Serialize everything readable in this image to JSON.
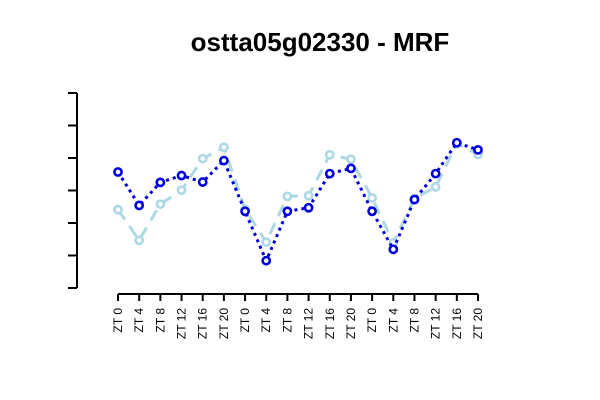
{
  "chart_data": {
    "type": "line",
    "title": "ostta05g02330 - MRF",
    "xlabel": "",
    "ylabel": "",
    "categories": [
      "ZT 0",
      "ZT 4",
      "ZT 8",
      "ZT 12",
      "ZT 16",
      "ZT 20",
      "ZT 0",
      "ZT 4",
      "ZT 8",
      "ZT 12",
      "ZT 16",
      "ZT 20",
      "ZT 0",
      "ZT 4",
      "ZT 8",
      "ZT 12",
      "ZT 16",
      "ZT 20"
    ],
    "ylim": [
      0,
      6
    ],
    "y_ticks": [
      0,
      1,
      2,
      3,
      4,
      5,
      6
    ],
    "y_tick_labels_shown": false,
    "grid": false,
    "series": [
      {
        "color": "#0000dd",
        "line_style": "dotted",
        "values": [
          3.57,
          2.54,
          3.25,
          3.46,
          3.26,
          3.92,
          2.36,
          0.84,
          2.36,
          2.47,
          3.52,
          3.68,
          2.36,
          1.19,
          2.72,
          3.52,
          4.47,
          4.25
        ]
      },
      {
        "color": "#add8e6",
        "line_style": "dashed",
        "values": [
          2.41,
          1.47,
          2.58,
          3.01,
          3.98,
          4.33,
          2.42,
          1.41,
          2.82,
          2.84,
          4.1,
          3.96,
          2.77,
          1.39,
          2.75,
          3.11,
          4.44,
          4.11
        ]
      }
    ]
  }
}
